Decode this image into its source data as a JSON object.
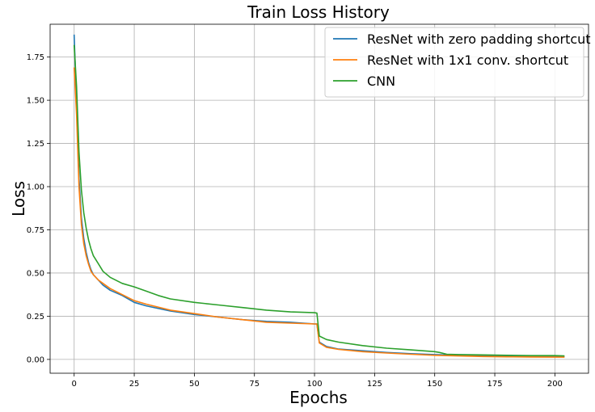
{
  "chart_data": {
    "type": "line",
    "title": "Train Loss History",
    "xlabel": "Epochs",
    "ylabel": "Loss",
    "xlim": [
      -10,
      214
    ],
    "ylim": [
      -0.08,
      1.94
    ],
    "xticks": [
      0,
      25,
      50,
      75,
      100,
      125,
      150,
      175,
      200
    ],
    "yticks": [
      0.0,
      0.25,
      0.5,
      0.75,
      1.0,
      1.25,
      1.5,
      1.75
    ],
    "xtick_labels": [
      "0",
      "25",
      "50",
      "75",
      "100",
      "125",
      "150",
      "175",
      "200"
    ],
    "ytick_labels": [
      "0.00",
      "0.25",
      "0.50",
      "0.75",
      "1.00",
      "1.25",
      "1.50",
      "1.75"
    ],
    "grid": true,
    "legend_position": "top-right",
    "series": [
      {
        "name": "ResNet with zero padding shortcut",
        "color": "#1f77b4",
        "points": [
          [
            0,
            1.88
          ],
          [
            1,
            1.48
          ],
          [
            2,
            1.05
          ],
          [
            3,
            0.82
          ],
          [
            4,
            0.7
          ],
          [
            5,
            0.62
          ],
          [
            6,
            0.56
          ],
          [
            7,
            0.52
          ],
          [
            8,
            0.49
          ],
          [
            10,
            0.46
          ],
          [
            12,
            0.43
          ],
          [
            15,
            0.4
          ],
          [
            20,
            0.37
          ],
          [
            25,
            0.33
          ],
          [
            30,
            0.31
          ],
          [
            40,
            0.28
          ],
          [
            50,
            0.26
          ],
          [
            60,
            0.245
          ],
          [
            70,
            0.23
          ],
          [
            80,
            0.22
          ],
          [
            90,
            0.215
          ],
          [
            100,
            0.205
          ],
          [
            101,
            0.205
          ],
          [
            102,
            0.1
          ],
          [
            105,
            0.075
          ],
          [
            110,
            0.06
          ],
          [
            120,
            0.05
          ],
          [
            130,
            0.04
          ],
          [
            140,
            0.033
          ],
          [
            150,
            0.028
          ],
          [
            160,
            0.024
          ],
          [
            170,
            0.021
          ],
          [
            180,
            0.019
          ],
          [
            190,
            0.018
          ],
          [
            200,
            0.017
          ],
          [
            204,
            0.016
          ]
        ]
      },
      {
        "name": "ResNet with 1x1 conv. shortcut",
        "color": "#ff7f0e",
        "points": [
          [
            0,
            1.69
          ],
          [
            1,
            1.42
          ],
          [
            2,
            1.0
          ],
          [
            3,
            0.78
          ],
          [
            4,
            0.67
          ],
          [
            5,
            0.6
          ],
          [
            6,
            0.55
          ],
          [
            7,
            0.51
          ],
          [
            8,
            0.49
          ],
          [
            10,
            0.46
          ],
          [
            12,
            0.44
          ],
          [
            15,
            0.41
          ],
          [
            20,
            0.375
          ],
          [
            25,
            0.34
          ],
          [
            30,
            0.32
          ],
          [
            40,
            0.285
          ],
          [
            50,
            0.265
          ],
          [
            60,
            0.245
          ],
          [
            70,
            0.23
          ],
          [
            80,
            0.215
          ],
          [
            90,
            0.21
          ],
          [
            100,
            0.205
          ],
          [
            101,
            0.205
          ],
          [
            102,
            0.095
          ],
          [
            105,
            0.07
          ],
          [
            110,
            0.058
          ],
          [
            120,
            0.045
          ],
          [
            130,
            0.037
          ],
          [
            140,
            0.03
          ],
          [
            150,
            0.024
          ],
          [
            160,
            0.02
          ],
          [
            170,
            0.017
          ],
          [
            180,
            0.015
          ],
          [
            190,
            0.014
          ],
          [
            200,
            0.013
          ],
          [
            204,
            0.013
          ]
        ]
      },
      {
        "name": "CNN",
        "color": "#2ca02c",
        "points": [
          [
            0,
            1.82
          ],
          [
            1,
            1.58
          ],
          [
            2,
            1.2
          ],
          [
            3,
            0.98
          ],
          [
            4,
            0.85
          ],
          [
            5,
            0.76
          ],
          [
            6,
            0.69
          ],
          [
            7,
            0.64
          ],
          [
            8,
            0.6
          ],
          [
            10,
            0.555
          ],
          [
            12,
            0.51
          ],
          [
            15,
            0.475
          ],
          [
            20,
            0.44
          ],
          [
            25,
            0.42
          ],
          [
            30,
            0.395
          ],
          [
            35,
            0.37
          ],
          [
            40,
            0.35
          ],
          [
            50,
            0.33
          ],
          [
            60,
            0.315
          ],
          [
            70,
            0.3
          ],
          [
            80,
            0.285
          ],
          [
            90,
            0.275
          ],
          [
            100,
            0.27
          ],
          [
            101,
            0.268
          ],
          [
            102,
            0.135
          ],
          [
            105,
            0.115
          ],
          [
            110,
            0.1
          ],
          [
            120,
            0.08
          ],
          [
            130,
            0.065
          ],
          [
            140,
            0.055
          ],
          [
            150,
            0.045
          ],
          [
            152,
            0.04
          ],
          [
            155,
            0.03
          ],
          [
            160,
            0.028
          ],
          [
            170,
            0.026
          ],
          [
            180,
            0.024
          ],
          [
            190,
            0.022
          ],
          [
            200,
            0.022
          ],
          [
            204,
            0.02
          ]
        ]
      }
    ]
  }
}
